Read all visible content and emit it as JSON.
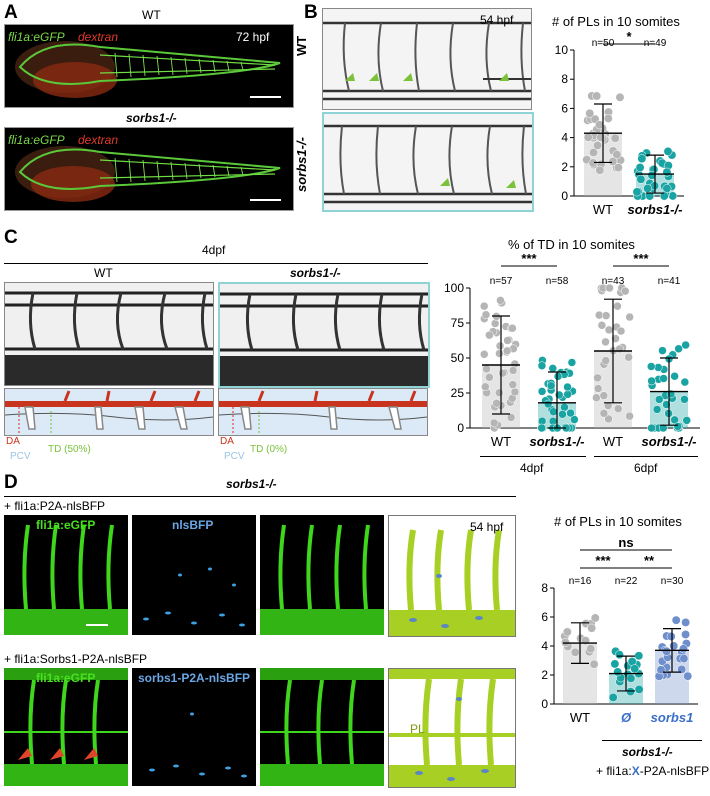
{
  "panels": {
    "A": {
      "letter": "A",
      "wt_title": "WT",
      "mut_title": "sorbs1-/-",
      "legend_green": "fli1a:eGFP",
      "legend_red": "dextran",
      "stage": "72 hpf"
    },
    "B": {
      "letter": "B",
      "row_wt": "WT",
      "row_mut": "sorbs1-/-",
      "stage": "54 hpf",
      "chart_title": "# of PLs in 10 somites",
      "sig": "*"
    },
    "C": {
      "letter": "C",
      "stage": "4dpf",
      "col_wt": "WT",
      "col_mut": "sorbs1-/-",
      "schema_da": "DA",
      "schema_pcv": "PCV",
      "schema_td_wt": "TD (50%)",
      "schema_td_mut": "TD (0%)",
      "chart_title": "% of TD in 10 somites",
      "group_4dpf": "4dpf",
      "group_6dpf": "6dpf",
      "sig_left": "***",
      "sig_right": "***"
    },
    "D": {
      "letter": "D",
      "genotype": "sorbs1-/-",
      "row1_construct": "+ fli1a:P2A-nlsBFP",
      "row2_construct": "+ fli1a:Sorbs1-P2A-nlsBFP",
      "ch_gfp": "fli1a:eGFP",
      "ch_bfp": "nlsBFP",
      "ch_sorbs_bfp": "sorbs1-P2A-nlsBFP",
      "stage": "54 hpf",
      "schema_pl": "PL",
      "chart_title": "# of PLs in 10 somites",
      "sig_ns": "ns",
      "sig_3": "***",
      "sig_2": "**",
      "xgroup": "sorbs1-/-",
      "construct_prefix": "+ fli1a:",
      "construct_x": "X",
      "construct_suffix": "-P2A-nlsBFP"
    }
  },
  "chart_data": [
    {
      "type": "bar",
      "panel": "B",
      "title": "# of PLs in 10 somites",
      "categories": [
        "WT",
        "sorbs1-/-"
      ],
      "values": [
        4.3,
        1.5
      ],
      "errors": [
        2.0,
        1.3
      ],
      "n_labels": [
        "n=50",
        "n=49"
      ],
      "colors": [
        "#b5b5b5",
        "#1aa3a3"
      ],
      "ylim": [
        0,
        10
      ],
      "yticks": [
        0,
        2,
        4,
        6,
        8,
        10
      ]
    },
    {
      "type": "bar",
      "panel": "C",
      "title": "% of TD in 10 somites",
      "categories": [
        "WT",
        "sorbs1-/-",
        "WT",
        "sorbs1-/-"
      ],
      "values": [
        45,
        18,
        55,
        26
      ],
      "errors": [
        35,
        22,
        37,
        24
      ],
      "n_labels": [
        "n=57",
        "n=58",
        "n=43",
        "n=41"
      ],
      "colors": [
        "#b5b5b5",
        "#1aa3a3",
        "#b5b5b5",
        "#1aa3a3"
      ],
      "ylim": [
        0,
        100
      ],
      "yticks": [
        0,
        25,
        50,
        75,
        100
      ]
    },
    {
      "type": "bar",
      "panel": "D",
      "title": "# of PLs in 10 somites",
      "categories": [
        "WT",
        "Ø",
        "sorbs1"
      ],
      "values": [
        4.2,
        2.1,
        3.7
      ],
      "errors": [
        1.4,
        1.2,
        1.5
      ],
      "n_labels": [
        "n=16",
        "n=22",
        "n=30"
      ],
      "colors": [
        "#b5b5b5",
        "#1aa3a3",
        "#6f8fcc"
      ],
      "ylim": [
        0,
        8
      ],
      "yticks": [
        0,
        2,
        4,
        6,
        8
      ]
    }
  ]
}
